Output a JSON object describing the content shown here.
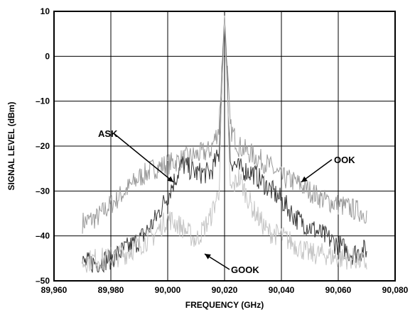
{
  "chart_data": {
    "type": "line",
    "xlabel": "FREQUENCY (GHz)",
    "ylabel": "SIGNAL LEVEL (dBm)",
    "xlim": [
      89960,
      90080
    ],
    "ylim": [
      -50,
      10
    ],
    "x_ticks": [
      89960,
      89980,
      90000,
      90020,
      90040,
      90060,
      90080
    ],
    "x_tick_labels": [
      "89,960",
      "89,980",
      "90,000",
      "90,020",
      "90,040",
      "90,060",
      "90,080"
    ],
    "y_ticks": [
      -50,
      -40,
      -30,
      -20,
      -10,
      0,
      10
    ],
    "y_tick_labels": [
      "–50",
      "–40",
      "–30",
      "–20",
      "–10",
      "0",
      "10"
    ],
    "grid": true,
    "series": [
      {
        "name": "OOK",
        "color": "#9a9a9a",
        "x": [
          89970,
          89975,
          89980,
          89985,
          89990,
          89995,
          90000,
          90005,
          90010,
          90015,
          90018,
          90020,
          90022,
          90025,
          90030,
          90035,
          90040,
          90045,
          90050,
          90055,
          90060,
          90065,
          90070
        ],
        "y": [
          -37,
          -36,
          -33,
          -30,
          -27,
          -25,
          -24,
          -23,
          -22,
          -21,
          -16,
          9,
          -16,
          -20,
          -22,
          -24,
          -27,
          -28,
          -30,
          -32,
          -33,
          -34,
          -35
        ]
      },
      {
        "name": "ASK",
        "color": "#3a3a3a",
        "x": [
          89970,
          89975,
          89980,
          89985,
          89990,
          89995,
          90000,
          90005,
          90010,
          90015,
          90018,
          90020,
          90022,
          90025,
          90030,
          90035,
          90040,
          90045,
          90050,
          90055,
          90060,
          90065,
          90070
        ],
        "y": [
          -46,
          -46,
          -45,
          -43,
          -41,
          -37,
          -31,
          -24,
          -26,
          -26,
          -22,
          9,
          -23,
          -25,
          -26,
          -29,
          -32,
          -36,
          -38,
          -40,
          -42,
          -44,
          -43
        ]
      },
      {
        "name": "GOOK",
        "color": "#c4c4c4",
        "x": [
          89970,
          89975,
          89980,
          89985,
          89990,
          89995,
          90000,
          90005,
          90010,
          90015,
          90018,
          90020,
          90022,
          90025,
          90030,
          90035,
          90040,
          90045,
          90050,
          90055,
          90060,
          90065,
          90070
        ],
        "y": [
          -46,
          -45,
          -45,
          -44,
          -42,
          -40,
          -36,
          -38,
          -41,
          -36,
          -30,
          9,
          -30,
          -27,
          -34,
          -39,
          -40,
          -42,
          -44,
          -44,
          -45,
          -45,
          -46
        ]
      }
    ],
    "annotations": [
      {
        "text": "ASK",
        "target_x": 90002,
        "target_y": -28
      },
      {
        "text": "OOK",
        "target_x": 90047,
        "target_y": -28
      },
      {
        "text": "GOOK",
        "target_x": 90013,
        "target_y": -44
      }
    ]
  }
}
